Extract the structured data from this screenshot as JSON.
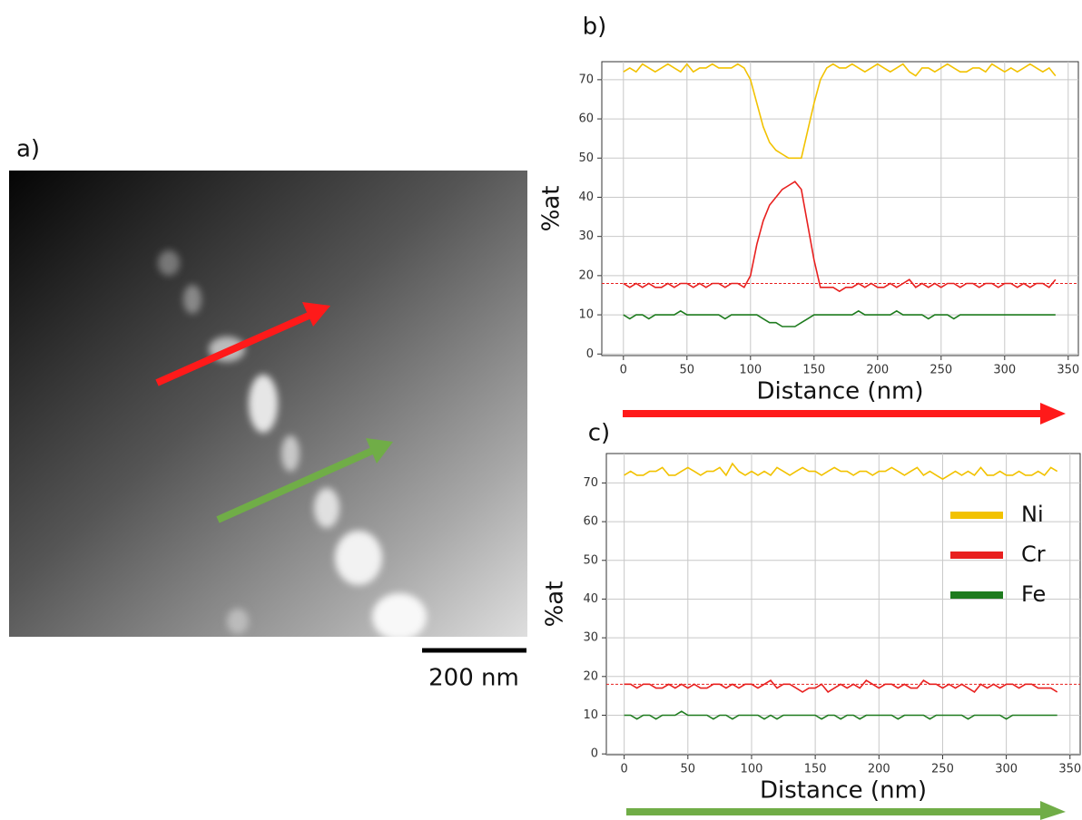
{
  "panel_a": {
    "label": "a)",
    "scale_bar": "200 nm"
  },
  "chart_data": [
    {
      "type": "line",
      "label": "b)",
      "xlabel": "Distance (nm)",
      "ylabel": "%at",
      "x": [
        0,
        5,
        10,
        15,
        20,
        25,
        30,
        35,
        40,
        45,
        50,
        55,
        60,
        65,
        70,
        75,
        80,
        85,
        90,
        95,
        100,
        105,
        110,
        115,
        120,
        125,
        130,
        135,
        140,
        145,
        150,
        155,
        160,
        165,
        170,
        175,
        180,
        185,
        190,
        195,
        200,
        205,
        210,
        215,
        220,
        225,
        230,
        235,
        240,
        245,
        250,
        255,
        260,
        265,
        270,
        275,
        280,
        285,
        290,
        295,
        300,
        305,
        310,
        315,
        320,
        325,
        330,
        335,
        340
      ],
      "series": [
        {
          "color": "#f2c200",
          "values": [
            72,
            73,
            72,
            74,
            73,
            72,
            73,
            74,
            73,
            72,
            74,
            72,
            73,
            73,
            74,
            73,
            73,
            73,
            74,
            73,
            70,
            64,
            58,
            54,
            52,
            51,
            50,
            50,
            50,
            57,
            64,
            70,
            73,
            74,
            73,
            73,
            74,
            73,
            72,
            73,
            74,
            73,
            72,
            73,
            74,
            72,
            71,
            73,
            73,
            72,
            73,
            74,
            73,
            72,
            72,
            73,
            73,
            72,
            74,
            73,
            72,
            73,
            72,
            73,
            74,
            73,
            72,
            73,
            71
          ]
        },
        {
          "color": "#e8201f",
          "values": [
            18,
            17,
            18,
            17,
            18,
            17,
            17,
            18,
            17,
            18,
            18,
            17,
            18,
            17,
            18,
            18,
            17,
            18,
            18,
            17,
            20,
            28,
            34,
            38,
            40,
            42,
            43,
            44,
            42,
            33,
            24,
            17,
            17,
            17,
            16,
            17,
            17,
            18,
            17,
            18,
            17,
            17,
            18,
            17,
            18,
            19,
            17,
            18,
            17,
            18,
            17,
            18,
            18,
            17,
            18,
            18,
            17,
            18,
            18,
            17,
            18,
            18,
            17,
            18,
            17,
            18,
            18,
            17,
            19
          ]
        },
        {
          "color": "#1e7b1e",
          "values": [
            10,
            9,
            10,
            10,
            9,
            10,
            10,
            10,
            10,
            11,
            10,
            10,
            10,
            10,
            10,
            10,
            9,
            10,
            10,
            10,
            10,
            10,
            9,
            8,
            8,
            7,
            7,
            7,
            8,
            9,
            10,
            10,
            10,
            10,
            10,
            10,
            10,
            11,
            10,
            10,
            10,
            10,
            10,
            11,
            10,
            10,
            10,
            10,
            9,
            10,
            10,
            10,
            9,
            10,
            10,
            10,
            10,
            10,
            10,
            10,
            10,
            10,
            10,
            10,
            10,
            10,
            10,
            10,
            10
          ]
        }
      ],
      "reference_line": {
        "value": 18,
        "color": "#e8201f"
      },
      "xlim": [
        -17,
        358
      ],
      "ylim": [
        -0.4,
        74.6
      ],
      "xticks": [
        0,
        50,
        100,
        150,
        200,
        250,
        300,
        350
      ],
      "yticks": [
        0,
        10,
        20,
        30,
        40,
        50,
        60,
        70
      ],
      "grid": true,
      "legend": false
    },
    {
      "type": "line",
      "label": "c)",
      "xlabel": "Distance (nm)",
      "ylabel": "%at",
      "x": [
        0,
        5,
        10,
        15,
        20,
        25,
        30,
        35,
        40,
        45,
        50,
        55,
        60,
        65,
        70,
        75,
        80,
        85,
        90,
        95,
        100,
        105,
        110,
        115,
        120,
        125,
        130,
        135,
        140,
        145,
        150,
        155,
        160,
        165,
        170,
        175,
        180,
        185,
        190,
        195,
        200,
        205,
        210,
        215,
        220,
        225,
        230,
        235,
        240,
        245,
        250,
        255,
        260,
        265,
        270,
        275,
        280,
        285,
        290,
        295,
        300,
        305,
        310,
        315,
        320,
        325,
        330,
        335,
        340
      ],
      "series": [
        {
          "name": "Ni",
          "color": "#f2c200",
          "values": [
            72,
            73,
            72,
            72,
            73,
            73,
            74,
            72,
            72,
            73,
            74,
            73,
            72,
            73,
            73,
            74,
            72,
            75,
            73,
            72,
            73,
            72,
            73,
            72,
            74,
            73,
            72,
            73,
            74,
            73,
            73,
            72,
            73,
            74,
            73,
            73,
            72,
            73,
            73,
            72,
            73,
            73,
            74,
            73,
            72,
            73,
            74,
            72,
            73,
            72,
            71,
            72,
            73,
            72,
            73,
            72,
            74,
            72,
            72,
            73,
            72,
            72,
            73,
            72,
            72,
            73,
            72,
            74,
            73
          ]
        },
        {
          "name": "Cr",
          "color": "#e8201f",
          "values": [
            18,
            18,
            17,
            18,
            18,
            17,
            17,
            18,
            17,
            18,
            17,
            18,
            17,
            17,
            18,
            18,
            17,
            18,
            17,
            18,
            18,
            17,
            18,
            19,
            17,
            18,
            18,
            17,
            16,
            17,
            17,
            18,
            16,
            17,
            18,
            17,
            18,
            17,
            19,
            18,
            17,
            18,
            18,
            17,
            18,
            17,
            17,
            19,
            18,
            18,
            17,
            18,
            17,
            18,
            17,
            16,
            18,
            17,
            18,
            17,
            18,
            18,
            17,
            18,
            18,
            17,
            17,
            17,
            16
          ]
        },
        {
          "name": "Fe",
          "color": "#1e7b1e",
          "values": [
            10,
            10,
            9,
            10,
            10,
            9,
            10,
            10,
            10,
            11,
            10,
            10,
            10,
            10,
            9,
            10,
            10,
            9,
            10,
            10,
            10,
            10,
            9,
            10,
            9,
            10,
            10,
            10,
            10,
            10,
            10,
            9,
            10,
            10,
            9,
            10,
            10,
            9,
            10,
            10,
            10,
            10,
            10,
            9,
            10,
            10,
            10,
            10,
            9,
            10,
            10,
            10,
            10,
            10,
            9,
            10,
            10,
            10,
            10,
            10,
            9,
            10,
            10,
            10,
            10,
            10,
            10,
            10,
            10
          ]
        }
      ],
      "reference_line": {
        "value": 18,
        "color": "#e8201f"
      },
      "xlim": [
        -14,
        358
      ],
      "ylim": [
        -0.2,
        77.6
      ],
      "xticks": [
        0,
        50,
        100,
        150,
        200,
        250,
        300,
        350
      ],
      "yticks": [
        0,
        10,
        20,
        30,
        40,
        50,
        60,
        70
      ],
      "grid": true,
      "legend": true,
      "legend_position": "right"
    }
  ]
}
